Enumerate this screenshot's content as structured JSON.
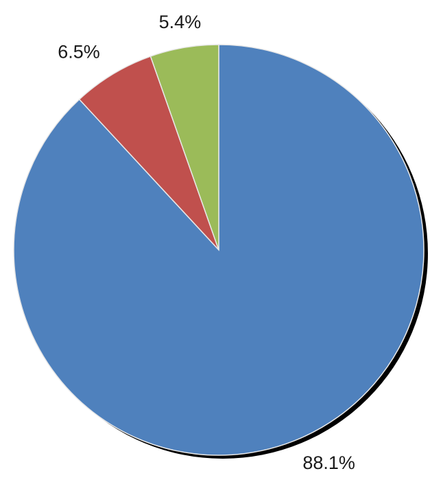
{
  "chart_data": {
    "type": "pie",
    "values": [
      88.1,
      6.5,
      5.4
    ],
    "value_labels": [
      "88.1%",
      "6.5%",
      "5.4%"
    ],
    "colors": [
      "#4f81bd",
      "#c0504d",
      "#9bbb59"
    ]
  }
}
